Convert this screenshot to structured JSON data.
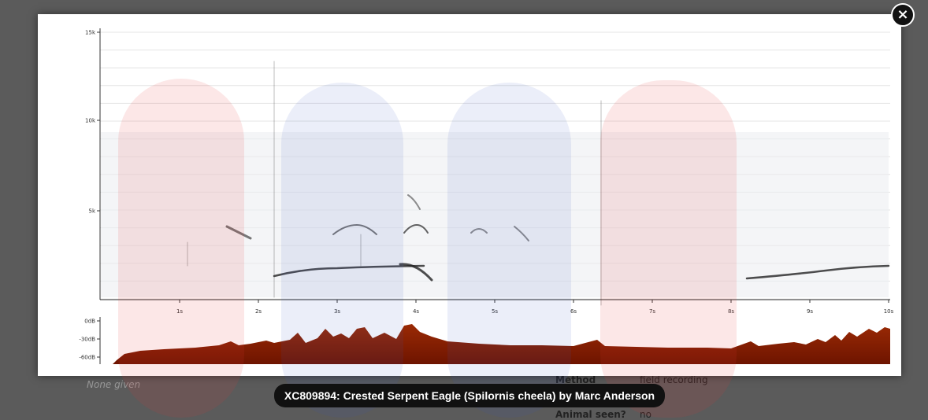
{
  "background": {
    "none_given": "None given",
    "fields": [
      {
        "label": "Method",
        "value": "field recording"
      },
      {
        "label": "Animal seen?",
        "value": "no"
      }
    ]
  },
  "spectrogram": {
    "freq_ticks": [
      "15k",
      "10k",
      "5k"
    ],
    "time_ticks": [
      "1s",
      "2s",
      "3s",
      "4s",
      "5s",
      "6s",
      "7s",
      "8s",
      "9s",
      "10s"
    ],
    "level_ticks": [
      "0dB",
      "-30dB",
      "-60dB"
    ]
  },
  "caption": "XC809894: Crested Serpent Eagle (Spilornis cheela) by Marc Anderson"
}
